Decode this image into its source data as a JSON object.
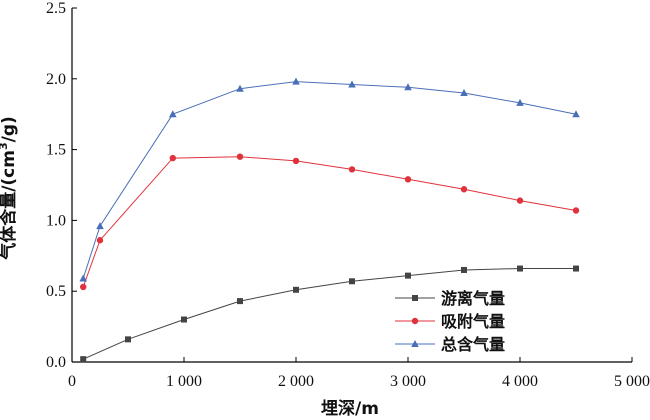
{
  "chart_data": {
    "type": "line",
    "xlabel": "埋深/m",
    "ylabel_main": "气体含量/(cm",
    "ylabel_sup": "3",
    "ylabel_tail": "/g)",
    "xlim": [
      0,
      5000
    ],
    "ylim": [
      0,
      2.5
    ],
    "xticks": [
      0,
      1000,
      2000,
      3000,
      4000,
      5000
    ],
    "xtick_labels": [
      "0",
      "1 000",
      "2 000",
      "3 000",
      "4 000",
      "5 000"
    ],
    "yticks": [
      0,
      0.5,
      1.0,
      1.5,
      2.0,
      2.5
    ],
    "ytick_labels": [
      "0.0",
      "0.5",
      "1.0",
      "1.5",
      "2.0",
      "2.5"
    ],
    "grid": false,
    "legend_position": "bottom-right",
    "series": [
      {
        "name": "游离气量",
        "marker": "square",
        "color": "#444444",
        "x": [
          100,
          500,
          1000,
          1500,
          2000,
          2500,
          3000,
          3500,
          4000,
          4500
        ],
        "y": [
          0.02,
          0.16,
          0.3,
          0.43,
          0.51,
          0.57,
          0.61,
          0.65,
          0.66,
          0.66
        ]
      },
      {
        "name": "吸附气量",
        "marker": "circle",
        "color": "#e0323c",
        "x": [
          100,
          250,
          900,
          1500,
          2000,
          2500,
          3000,
          3500,
          4000,
          4500
        ],
        "y": [
          0.53,
          0.86,
          1.44,
          1.45,
          1.42,
          1.36,
          1.29,
          1.22,
          1.14,
          1.07
        ]
      },
      {
        "name": "总含气量",
        "marker": "triangle",
        "color": "#4a6fb8",
        "x": [
          100,
          250,
          900,
          1500,
          2000,
          2500,
          3000,
          3500,
          4000,
          4500
        ],
        "y": [
          0.59,
          0.96,
          1.75,
          1.93,
          1.98,
          1.96,
          1.94,
          1.9,
          1.83,
          1.75
        ]
      }
    ]
  }
}
